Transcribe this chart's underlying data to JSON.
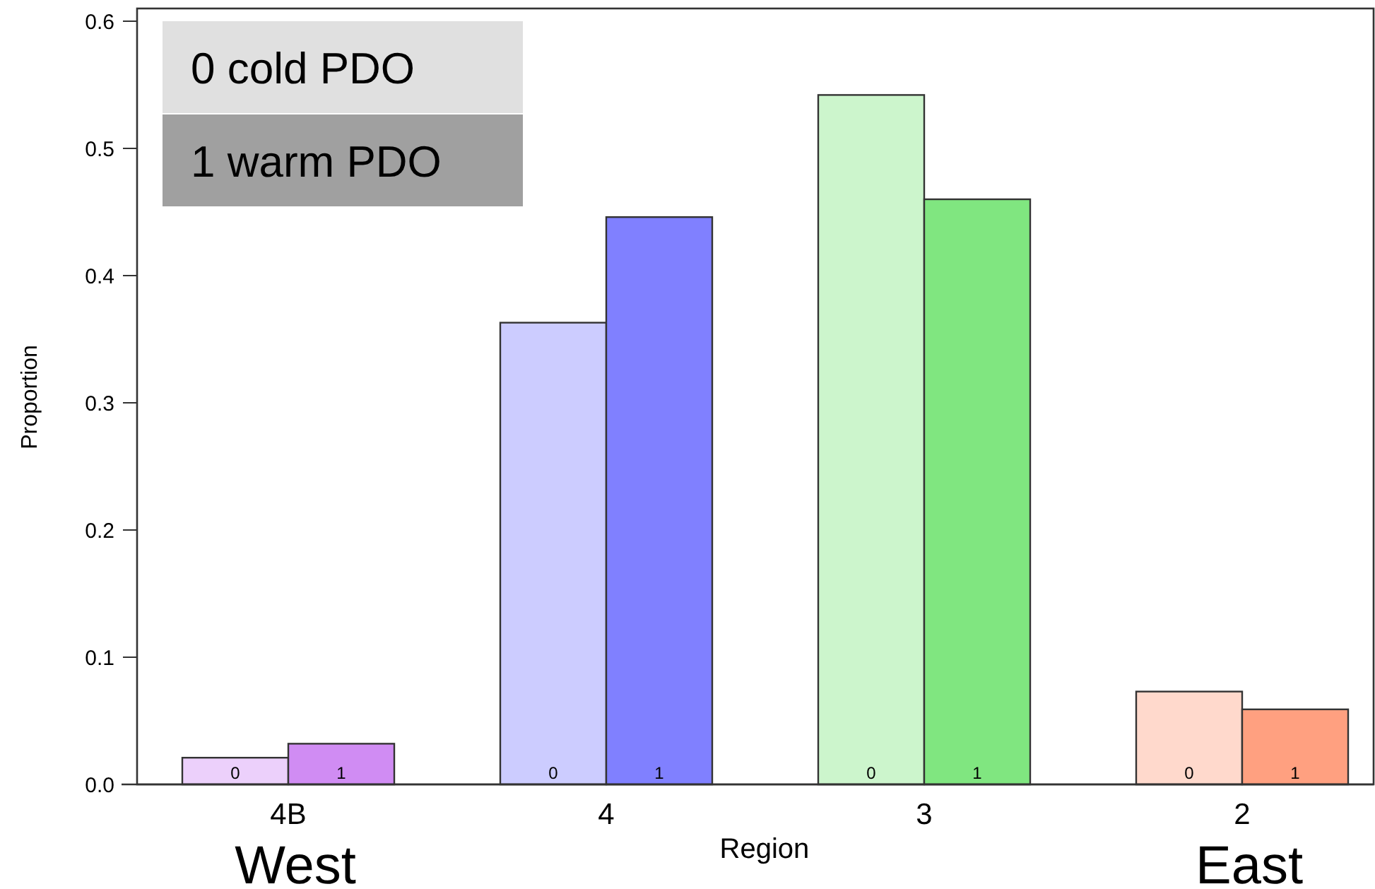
{
  "chart_data": {
    "type": "bar",
    "xlabel": "Region",
    "ylabel": "Proportion",
    "categories": [
      "4B",
      "4",
      "3",
      "2"
    ],
    "series": [
      {
        "name": "0",
        "colors": [
          "#ecd0fb",
          "#ccccff",
          "#ccf5cc",
          "#ffd9cc"
        ],
        "values": [
          0.021,
          0.363,
          0.542,
          0.073
        ]
      },
      {
        "name": "1",
        "colors": [
          "#d08cf3",
          "#8080ff",
          "#80e680",
          "#ffa080"
        ],
        "values": [
          0.032,
          0.446,
          0.46,
          0.059
        ]
      }
    ],
    "ylim": [
      0,
      0.61
    ],
    "yticks": [
      {
        "value": 0,
        "label": "0.0"
      },
      0.1,
      0.2,
      0.3,
      0.4,
      0.5,
      0.6
    ],
    "annotations": [
      "0 cold PDO",
      "1 warm PDO",
      "West",
      "East"
    ],
    "grid": false
  }
}
